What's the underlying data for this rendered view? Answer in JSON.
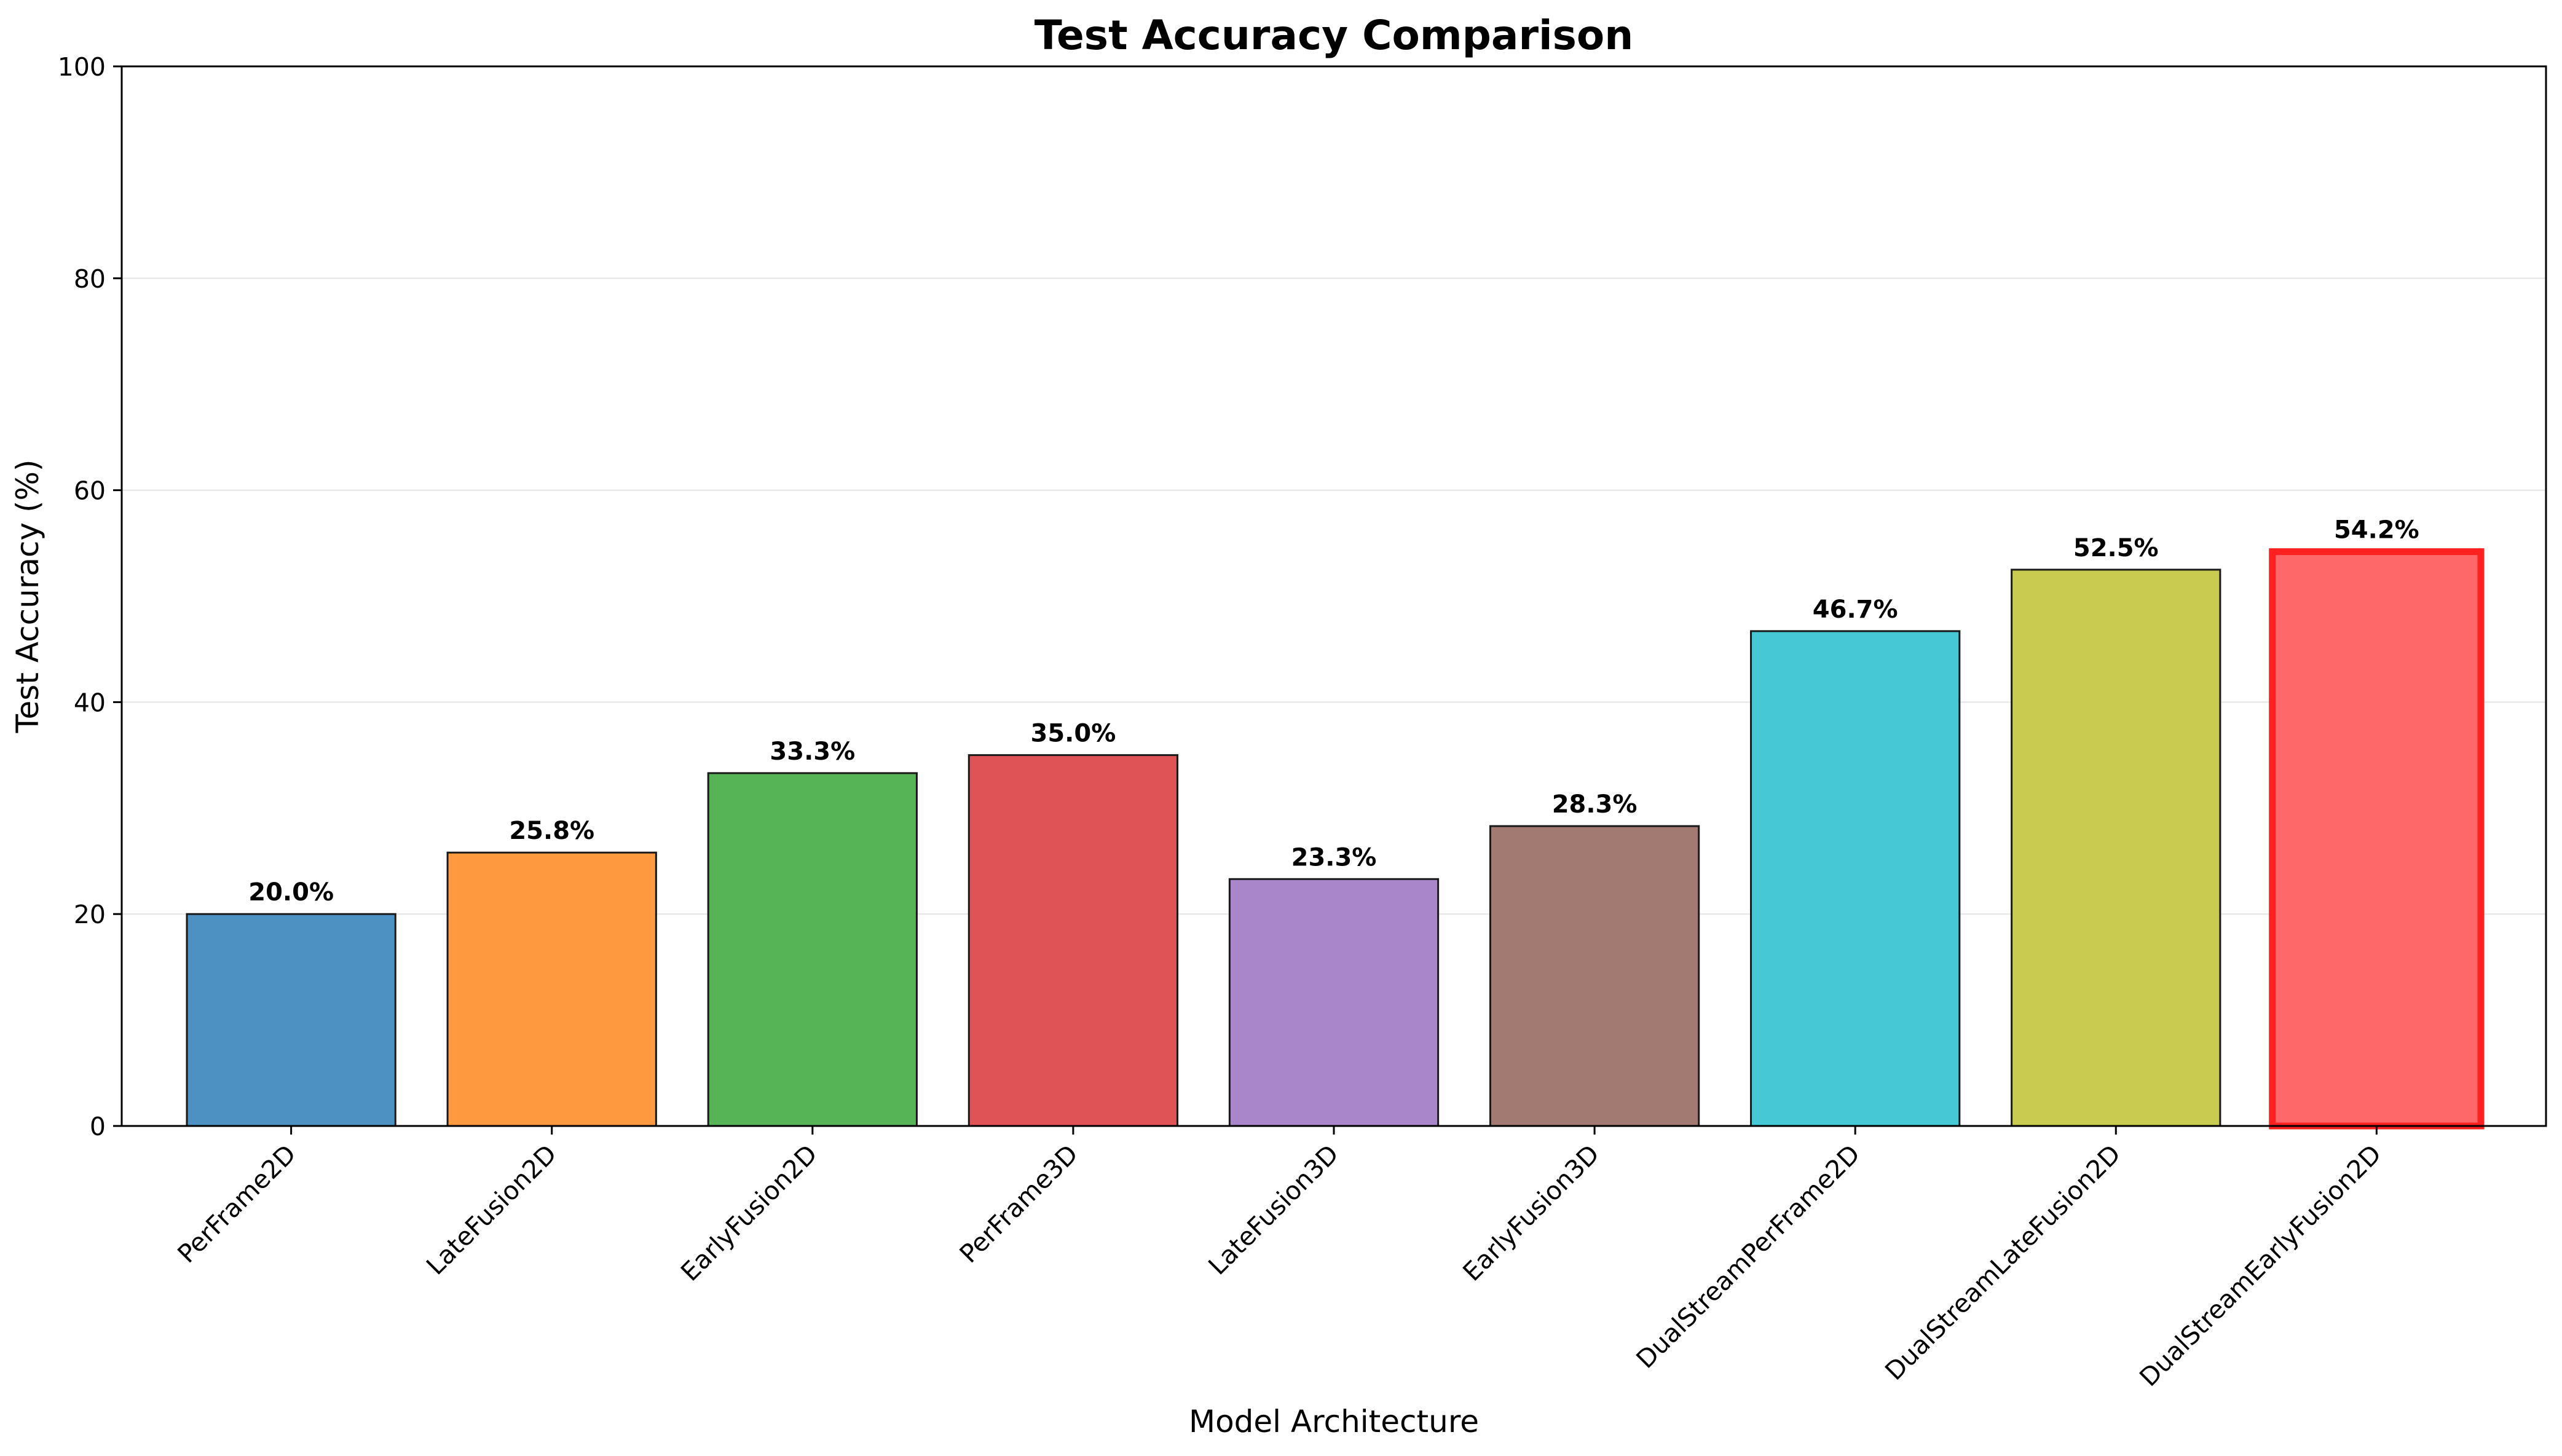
{
  "chart_data": {
    "type": "bar",
    "title": "Test Accuracy Comparison",
    "xlabel": "Model Architecture",
    "ylabel": "Test Accuracy (%)",
    "ylim": [
      0,
      100
    ],
    "yticks": [
      0,
      20,
      40,
      60,
      80,
      100
    ],
    "grid": "y-axis, light",
    "categories": [
      "PerFrame2D",
      "LateFusion2D",
      "EarlyFusion2D",
      "PerFrame3D",
      "LateFusion3D",
      "EarlyFusion3D",
      "DualStreamPerFrame2D",
      "DualStreamLateFusion2D",
      "DualStreamEarlyFusion2D"
    ],
    "values": [
      20.0,
      25.8,
      33.3,
      35.0,
      23.3,
      28.3,
      46.7,
      52.5,
      54.2
    ],
    "data_labels": [
      "20.0%",
      "25.8%",
      "33.3%",
      "35.0%",
      "23.3%",
      "28.3%",
      "46.7%",
      "52.5%",
      "54.2%"
    ],
    "colors": [
      "#4c91c2",
      "#ff9a40",
      "#56b356",
      "#df5356",
      "#a986c9",
      "#a27a71",
      "#46c9d5",
      "#c9cb51",
      "#ff6868"
    ],
    "highlight_index": 8,
    "highlight_border_color": "#ff2020"
  }
}
